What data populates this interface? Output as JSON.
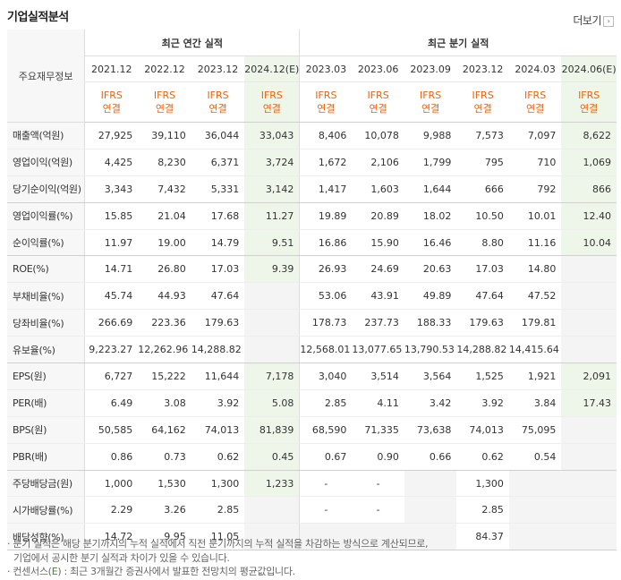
{
  "header": {
    "title": "기업실적분석",
    "more_label": "더보기"
  },
  "table": {
    "label_header": "주요재무정보",
    "annual_group": "최근 연간 실적",
    "quarter_group": "최근 분기 실적",
    "periods": [
      "2021.12",
      "2022.12",
      "2023.12",
      "2024.12(E)",
      "2023.03",
      "2023.06",
      "2023.09",
      "2023.12",
      "2024.03",
      "2024.06(E)"
    ],
    "ifrs_line1": "IFRS",
    "ifrs_line2": "연결",
    "rows": [
      {
        "label": "매출액(억원)",
        "values": [
          "27,925",
          "39,110",
          "36,044",
          "33,043",
          "8,406",
          "10,078",
          "9,988",
          "7,573",
          "7,097",
          "8,622"
        ]
      },
      {
        "label": "영업이익(억원)",
        "values": [
          "4,425",
          "8,230",
          "6,371",
          "3,724",
          "1,672",
          "2,106",
          "1,799",
          "795",
          "710",
          "1,069"
        ]
      },
      {
        "label": "당기순이익(억원)",
        "values": [
          "3,343",
          "7,432",
          "5,331",
          "3,142",
          "1,417",
          "1,603",
          "1,644",
          "666",
          "792",
          "866"
        ]
      },
      {
        "label": "영업이익률(%)",
        "values": [
          "15.85",
          "21.04",
          "17.68",
          "11.27",
          "19.89",
          "20.89",
          "18.02",
          "10.50",
          "10.01",
          "12.40"
        ]
      },
      {
        "label": "순이익률(%)",
        "values": [
          "11.97",
          "19.00",
          "14.79",
          "9.51",
          "16.86",
          "15.90",
          "16.46",
          "8.80",
          "11.16",
          "10.04"
        ]
      },
      {
        "label": "ROE(%)",
        "values": [
          "14.71",
          "26.80",
          "17.03",
          "9.39",
          "26.93",
          "24.69",
          "20.63",
          "17.03",
          "14.80",
          ""
        ]
      },
      {
        "label": "부채비율(%)",
        "values": [
          "45.74",
          "44.93",
          "47.64",
          "",
          "53.06",
          "43.91",
          "49.89",
          "47.64",
          "47.52",
          ""
        ]
      },
      {
        "label": "당좌비율(%)",
        "values": [
          "266.69",
          "223.36",
          "179.63",
          "",
          "178.73",
          "237.73",
          "188.33",
          "179.63",
          "179.81",
          ""
        ]
      },
      {
        "label": "유보율(%)",
        "values": [
          "9,223.27",
          "12,262.96",
          "14,288.82",
          "",
          "12,568.01",
          "13,077.65",
          "13,790.53",
          "14,288.82",
          "14,415.64",
          ""
        ]
      },
      {
        "label": "EPS(원)",
        "values": [
          "6,727",
          "15,222",
          "11,644",
          "7,178",
          "3,040",
          "3,514",
          "3,564",
          "1,525",
          "1,921",
          "2,091"
        ]
      },
      {
        "label": "PER(배)",
        "values": [
          "6.49",
          "3.08",
          "3.92",
          "5.08",
          "2.85",
          "4.11",
          "3.42",
          "3.92",
          "3.84",
          "17.43"
        ]
      },
      {
        "label": "BPS(원)",
        "values": [
          "50,585",
          "64,162",
          "74,013",
          "81,839",
          "68,590",
          "71,335",
          "73,638",
          "74,013",
          "75,095",
          ""
        ]
      },
      {
        "label": "PBR(배)",
        "values": [
          "0.86",
          "0.73",
          "0.62",
          "0.45",
          "0.67",
          "0.90",
          "0.66",
          "0.62",
          "0.54",
          ""
        ]
      },
      {
        "label": "주당배당금(원)",
        "values": [
          "1,000",
          "1,530",
          "1,300",
          "1,233",
          "-",
          "-",
          "",
          "1,300",
          "",
          ""
        ]
      },
      {
        "label": "시가배당률(%)",
        "values": [
          "2.29",
          "3.26",
          "2.85",
          "",
          "-",
          "-",
          "",
          "2.85",
          "",
          ""
        ]
      },
      {
        "label": "배당성향(%)",
        "values": [
          "14.72",
          "9.95",
          "11.05",
          "",
          "",
          "",
          "",
          "84.37",
          "",
          ""
        ]
      }
    ]
  },
  "notes": {
    "note1_line1": "분기 실적은 해당 분기까지의 누적 실적에서 직전 분기까지의 누적 실적을 차감하는 방식으로 계산되므로,",
    "note1_line2": "기업에서 공시한 분기 실적과 차이가 있을 수 있습니다.",
    "note2_prefix": "컨센서스(",
    "note2_e": "E",
    "note2_suffix": ") : 최근 3개월간 증권사에서 발표한 전망치의 평균값입니다."
  }
}
